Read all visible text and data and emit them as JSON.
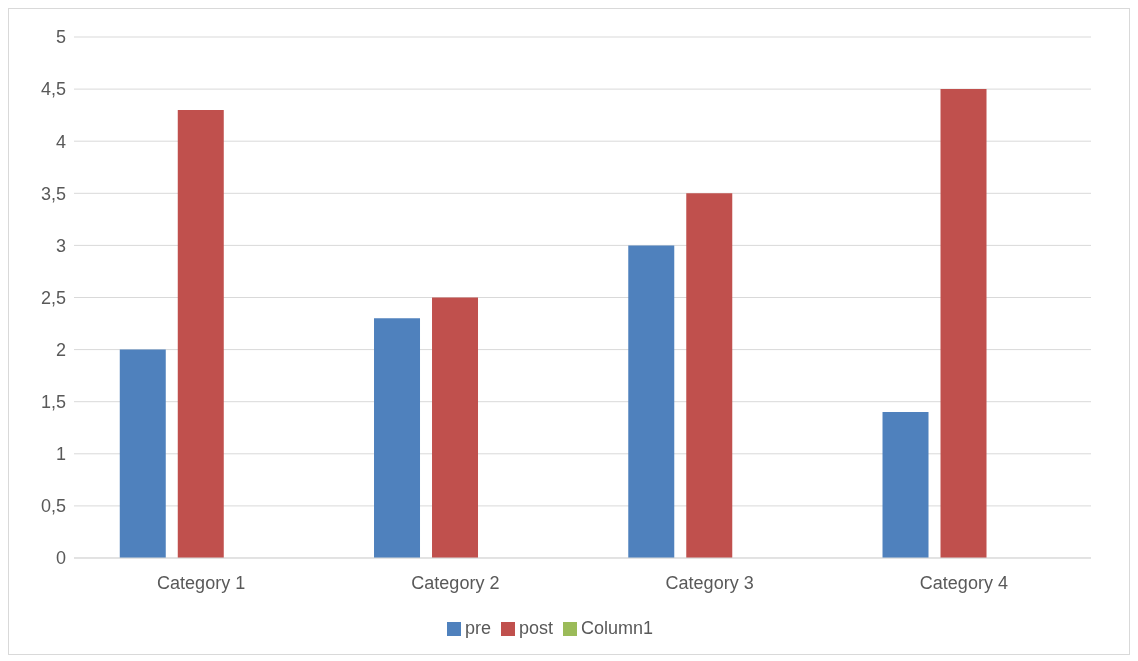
{
  "chart_data": {
    "type": "bar",
    "categories": [
      "Category 1",
      "Category 2",
      "Category 3",
      "Category 4"
    ],
    "series": [
      {
        "name": "pre",
        "color": "#4f81bd",
        "values": [
          2,
          2.3,
          3,
          1.4
        ]
      },
      {
        "name": "post",
        "color": "#c0504d",
        "values": [
          4.3,
          2.5,
          3.5,
          4.5
        ]
      },
      {
        "name": "Column1",
        "color": "#9bbb59",
        "values": [
          null,
          null,
          null,
          null
        ]
      }
    ],
    "ylim": [
      0,
      5
    ],
    "yticks": [
      0,
      {
        "value": 0.5,
        "label": "0,5"
      },
      1,
      {
        "value": 1.5,
        "label": "1,5"
      },
      2,
      {
        "value": 2.5,
        "label": "2,5"
      },
      3,
      {
        "value": 3.5,
        "label": "3,5"
      },
      4,
      {
        "value": 4.5,
        "label": "4,5"
      },
      5
    ],
    "grid": "y",
    "legend": "bottom"
  }
}
